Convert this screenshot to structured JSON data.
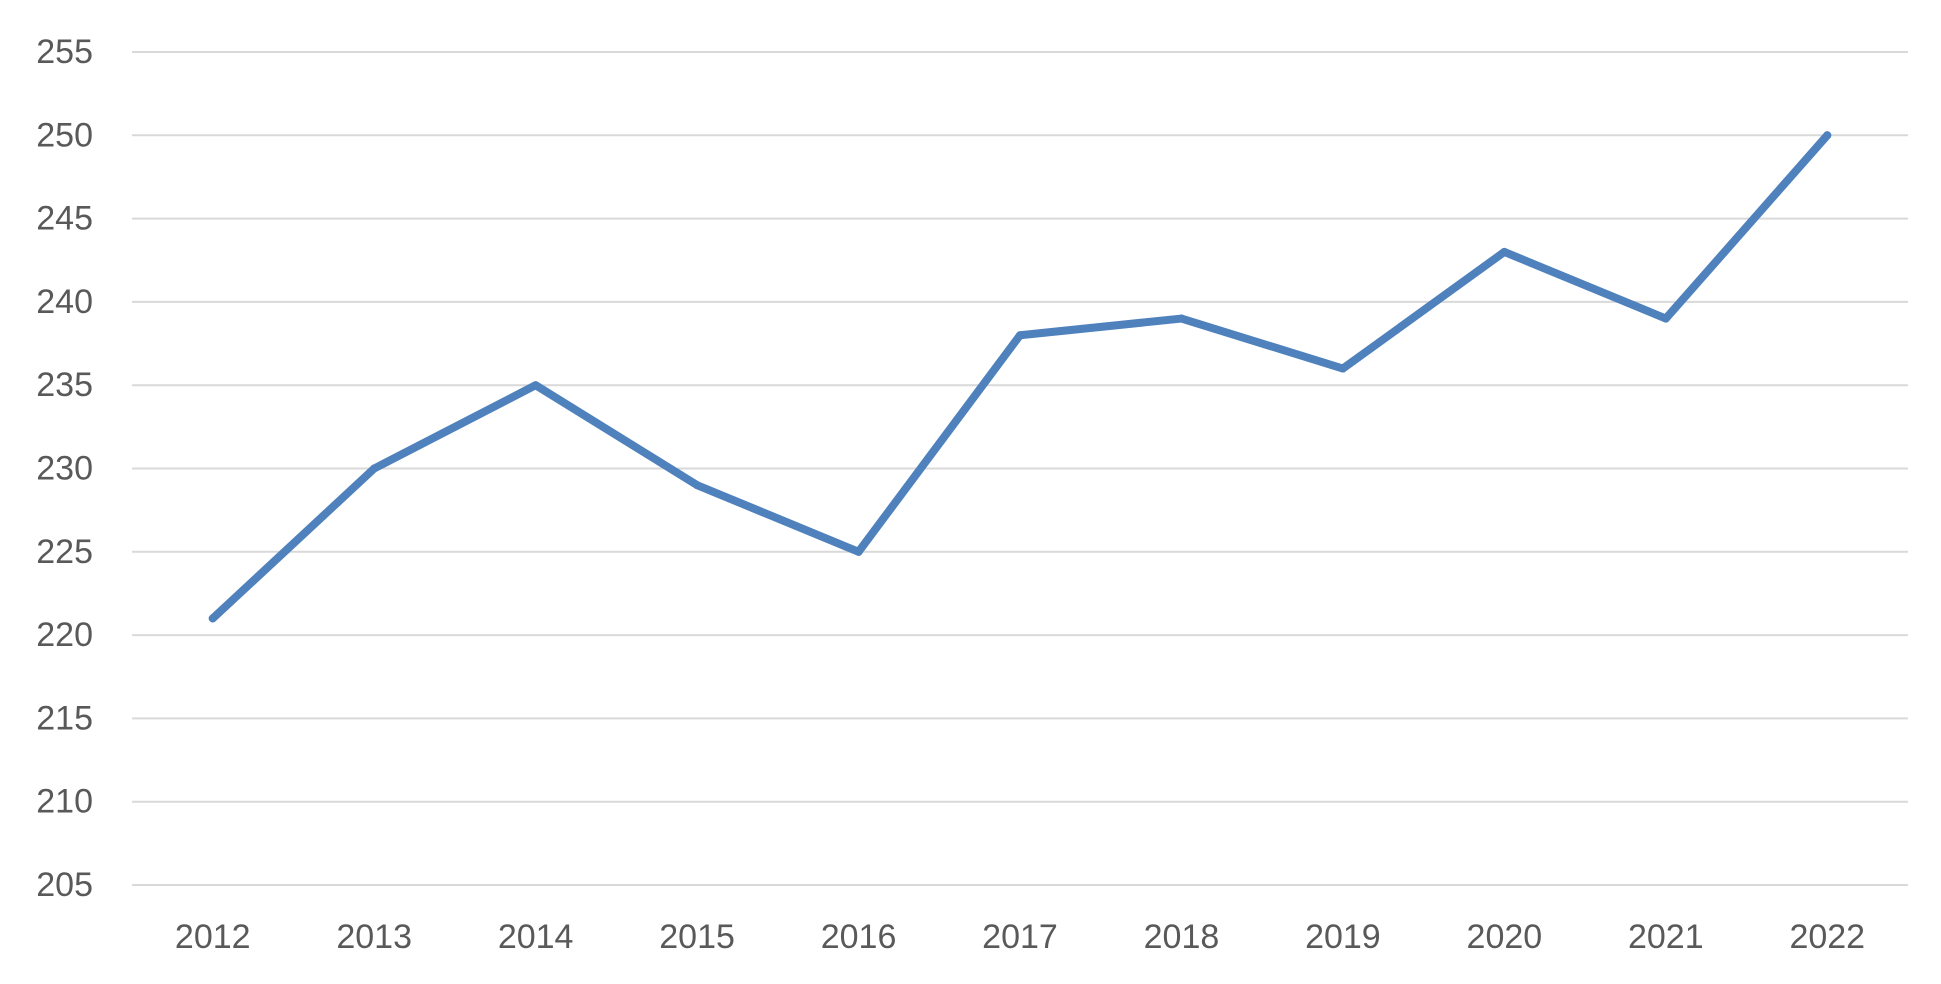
{
  "chart_data": {
    "type": "line",
    "title": "",
    "xlabel": "",
    "ylabel": "",
    "categories": [
      "2012",
      "2013",
      "2014",
      "2015",
      "2016",
      "2017",
      "2018",
      "2019",
      "2020",
      "2021",
      "2022"
    ],
    "series": [
      {
        "values": [
          221,
          230,
          235,
          229,
          225,
          238,
          239,
          236,
          243,
          239,
          250
        ],
        "color": "#4f81bd"
      }
    ],
    "ylim": [
      205,
      255
    ],
    "yticks": [
      "205",
      "210",
      "215",
      "220",
      "225",
      "230",
      "235",
      "240",
      "245",
      "250",
      "255"
    ],
    "grid": true,
    "legend": "none"
  },
  "colors": {
    "grid": "#d9d9d9",
    "tick_text": "#595959"
  }
}
